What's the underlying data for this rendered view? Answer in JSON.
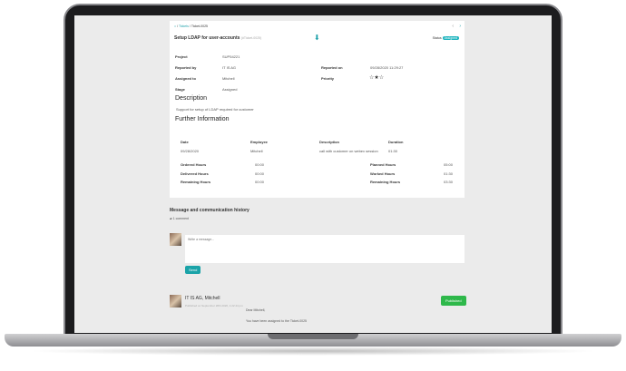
{
  "breadcrumb": {
    "home_icon": "home-icon",
    "item1": "Tickets",
    "item2": "Ticket-0025"
  },
  "ticket": {
    "title": "Setup LDAP for user-accounts",
    "id": "(#Ticket-0025)",
    "status_label": "Status",
    "status": "Assigned"
  },
  "fields": {
    "project_label": "Project",
    "project": "SUP54221",
    "reported_by_label": "Reported by",
    "reported_by": "IT IS AG",
    "assigned_label": "Assigned to",
    "assigned": "Mitchell",
    "stage_label": "Stage",
    "stage": "Assigned",
    "reported_on_label": "Reported on",
    "reported_on": "09/28/2020 11:29:27",
    "priority_label": "Priority",
    "priority_stars": 2,
    "priority_max": 3
  },
  "description": {
    "heading": "Description",
    "text": "Support for setup of LDAP required for customer"
  },
  "further": {
    "heading": "Further Information",
    "columns": [
      "Date",
      "Employee",
      "Description",
      "Duration"
    ],
    "rows": [
      [
        "09/28/2020",
        "Mitchell",
        "call with customer on webex session",
        "01:30"
      ]
    ],
    "left": [
      {
        "label": "Ordered Hours",
        "value": "00:00"
      },
      {
        "label": "Delivered Hours",
        "value": "00:00"
      },
      {
        "label": "Remaining Hours",
        "value": "00:00"
      }
    ],
    "right": [
      {
        "label": "Planned Hours",
        "value": "05:00"
      },
      {
        "label": "Worked Hours",
        "value": "01:30"
      },
      {
        "label": "Remaining Hours",
        "value": "03:30"
      }
    ]
  },
  "messages": {
    "heading": "Message and communication history",
    "count": "1 comment",
    "placeholder": "Write a message...",
    "send": "Send",
    "author": "IT IS AG, Mitchell",
    "published_on": "Published on September 28th 2020, 1:22:44 pm",
    "status": "Published",
    "greeting": "Dear Mitchell,",
    "body": "You have been assigned to the Ticket-0025"
  }
}
